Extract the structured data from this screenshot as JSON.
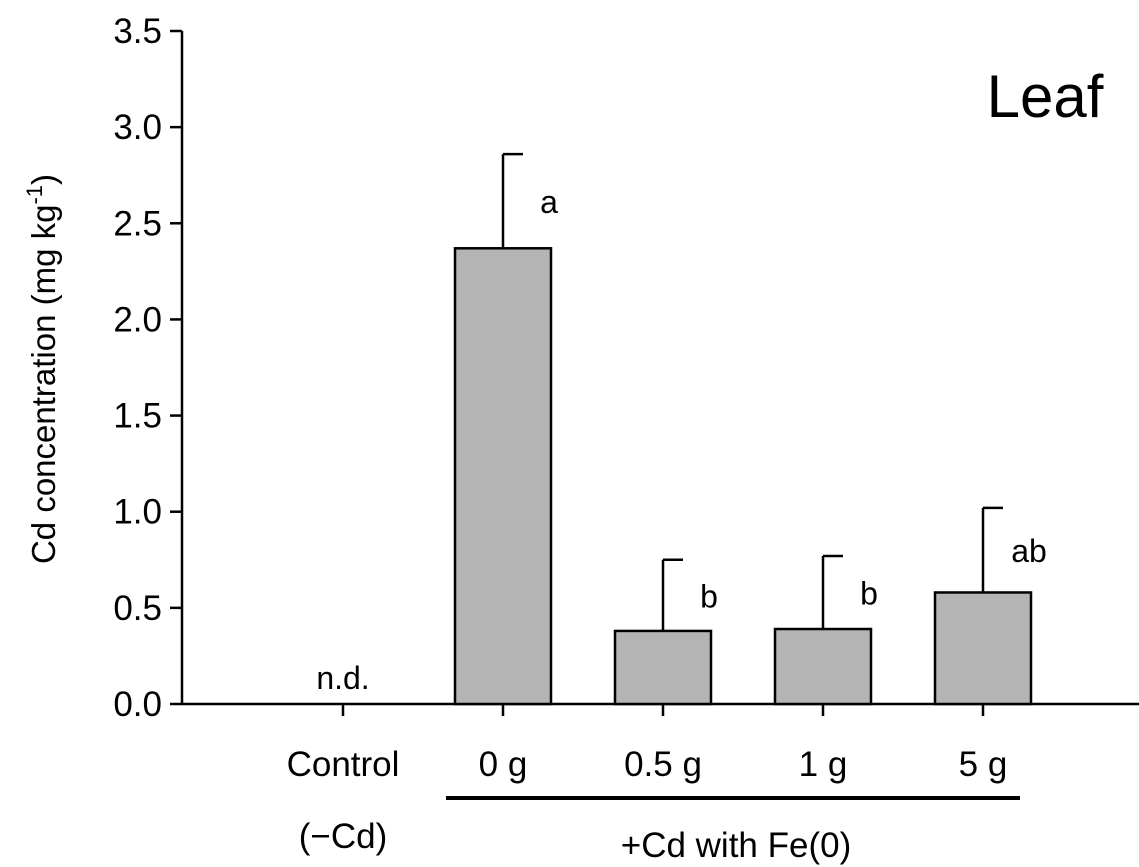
{
  "chart_data": {
    "type": "bar",
    "panel_label": "Leaf",
    "ylabel": "Cd concentration (mg kg",
    "ylabel_sup": "-1",
    "ylabel_close": ")",
    "ylim": [
      0,
      3.5
    ],
    "yticks": [
      "0.0",
      "0.5",
      "1.0",
      "1.5",
      "2.0",
      "2.5",
      "3.0",
      "3.5"
    ],
    "categories": [
      "Control",
      "0 g",
      "0.5 g",
      "1 g",
      "5 g"
    ],
    "values": [
      null,
      2.37,
      0.38,
      0.39,
      0.58
    ],
    "errors": [
      null,
      0.49,
      0.37,
      0.38,
      0.44
    ],
    "annotations": [
      "n.d.",
      "a",
      "b",
      "b",
      "ab"
    ],
    "control_sublabel": "(−Cd)",
    "group_label": "+Cd with Fe(0)",
    "bar_color": "#b4b4b4",
    "grid": false
  }
}
